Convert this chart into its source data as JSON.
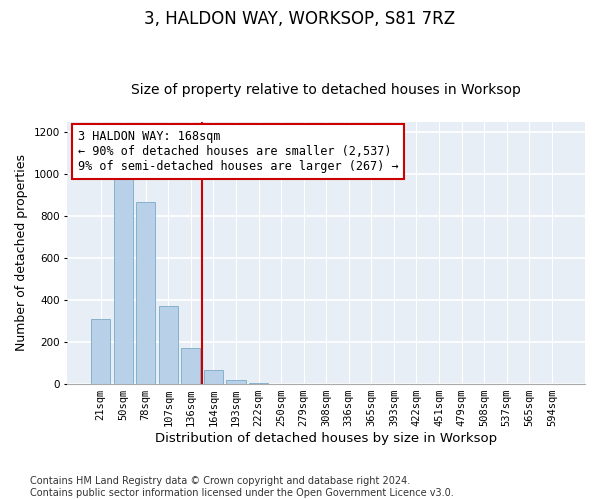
{
  "title": "3, HALDON WAY, WORKSOP, S81 7RZ",
  "subtitle": "Size of property relative to detached houses in Worksop",
  "xlabel": "Distribution of detached houses by size in Worksop",
  "ylabel": "Number of detached properties",
  "categories": [
    "21sqm",
    "50sqm",
    "78sqm",
    "107sqm",
    "136sqm",
    "164sqm",
    "193sqm",
    "222sqm",
    "250sqm",
    "279sqm",
    "308sqm",
    "336sqm",
    "365sqm",
    "393sqm",
    "422sqm",
    "451sqm",
    "479sqm",
    "508sqm",
    "537sqm",
    "565sqm",
    "594sqm"
  ],
  "values": [
    310,
    975,
    870,
    370,
    170,
    65,
    20,
    3,
    2,
    2,
    1,
    1,
    1,
    1,
    1,
    1,
    1,
    1,
    1,
    1,
    1
  ],
  "bar_color": "#b8d0e8",
  "bar_edgecolor": "#7aaac8",
  "background_color": "#e8eef5",
  "annotation_text": "3 HALDON WAY: 168sqm\n← 90% of detached houses are smaller (2,537)\n9% of semi-detached houses are larger (267) →",
  "annotation_box_edgecolor": "#cc0000",
  "vline_x_index": 5,
  "ylim": [
    0,
    1250
  ],
  "yticks": [
    0,
    200,
    400,
    600,
    800,
    1000,
    1200
  ],
  "footnote": "Contains HM Land Registry data © Crown copyright and database right 2024.\nContains public sector information licensed under the Open Government Licence v3.0.",
  "title_fontsize": 12,
  "subtitle_fontsize": 10,
  "xlabel_fontsize": 9.5,
  "ylabel_fontsize": 9,
  "tick_fontsize": 7.5,
  "annotation_fontsize": 8.5,
  "footnote_fontsize": 7
}
